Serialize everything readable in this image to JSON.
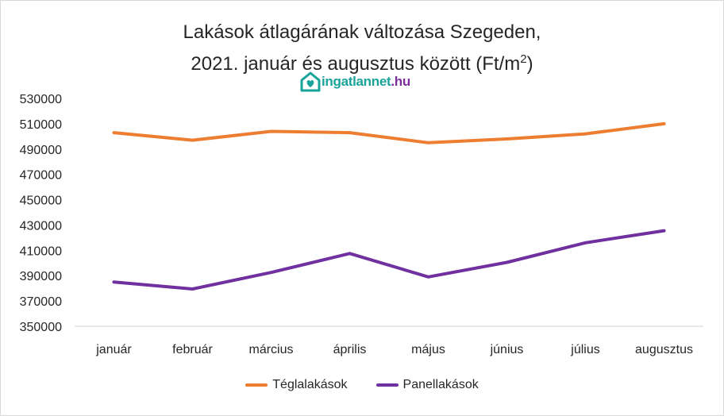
{
  "title": {
    "line1": "Lakások átlagárának változása Szegeden,",
    "line2_main": "2021. január és augusztus között (Ft/m",
    "line2_sup": "2",
    "line2_end": ")"
  },
  "logo": {
    "name": "ingatlannet",
    "tld": ".hu",
    "icon": "house-heart-icon",
    "color": "#1aa39a",
    "tld_color": "#7b2f9d"
  },
  "chart_data": {
    "type": "line",
    "categories": [
      "január",
      "február",
      "március",
      "április",
      "május",
      "június",
      "július",
      "augusztus"
    ],
    "series": [
      {
        "name": "Téglalakások",
        "color": "#ed7d31",
        "values": [
          503000,
          497000,
          504000,
          503000,
          495000,
          498000,
          502000,
          510000
        ]
      },
      {
        "name": "Panellakások",
        "color": "#7030a0",
        "values": [
          385000,
          379500,
          392500,
          407500,
          389000,
          400500,
          416000,
          425500
        ]
      }
    ],
    "yticks": [
      "350000",
      "370000",
      "390000",
      "410000",
      "430000",
      "450000",
      "470000",
      "490000",
      "510000",
      "530000"
    ],
    "ylim": [
      350000,
      530000
    ],
    "grid": false,
    "legend": "bottom"
  }
}
